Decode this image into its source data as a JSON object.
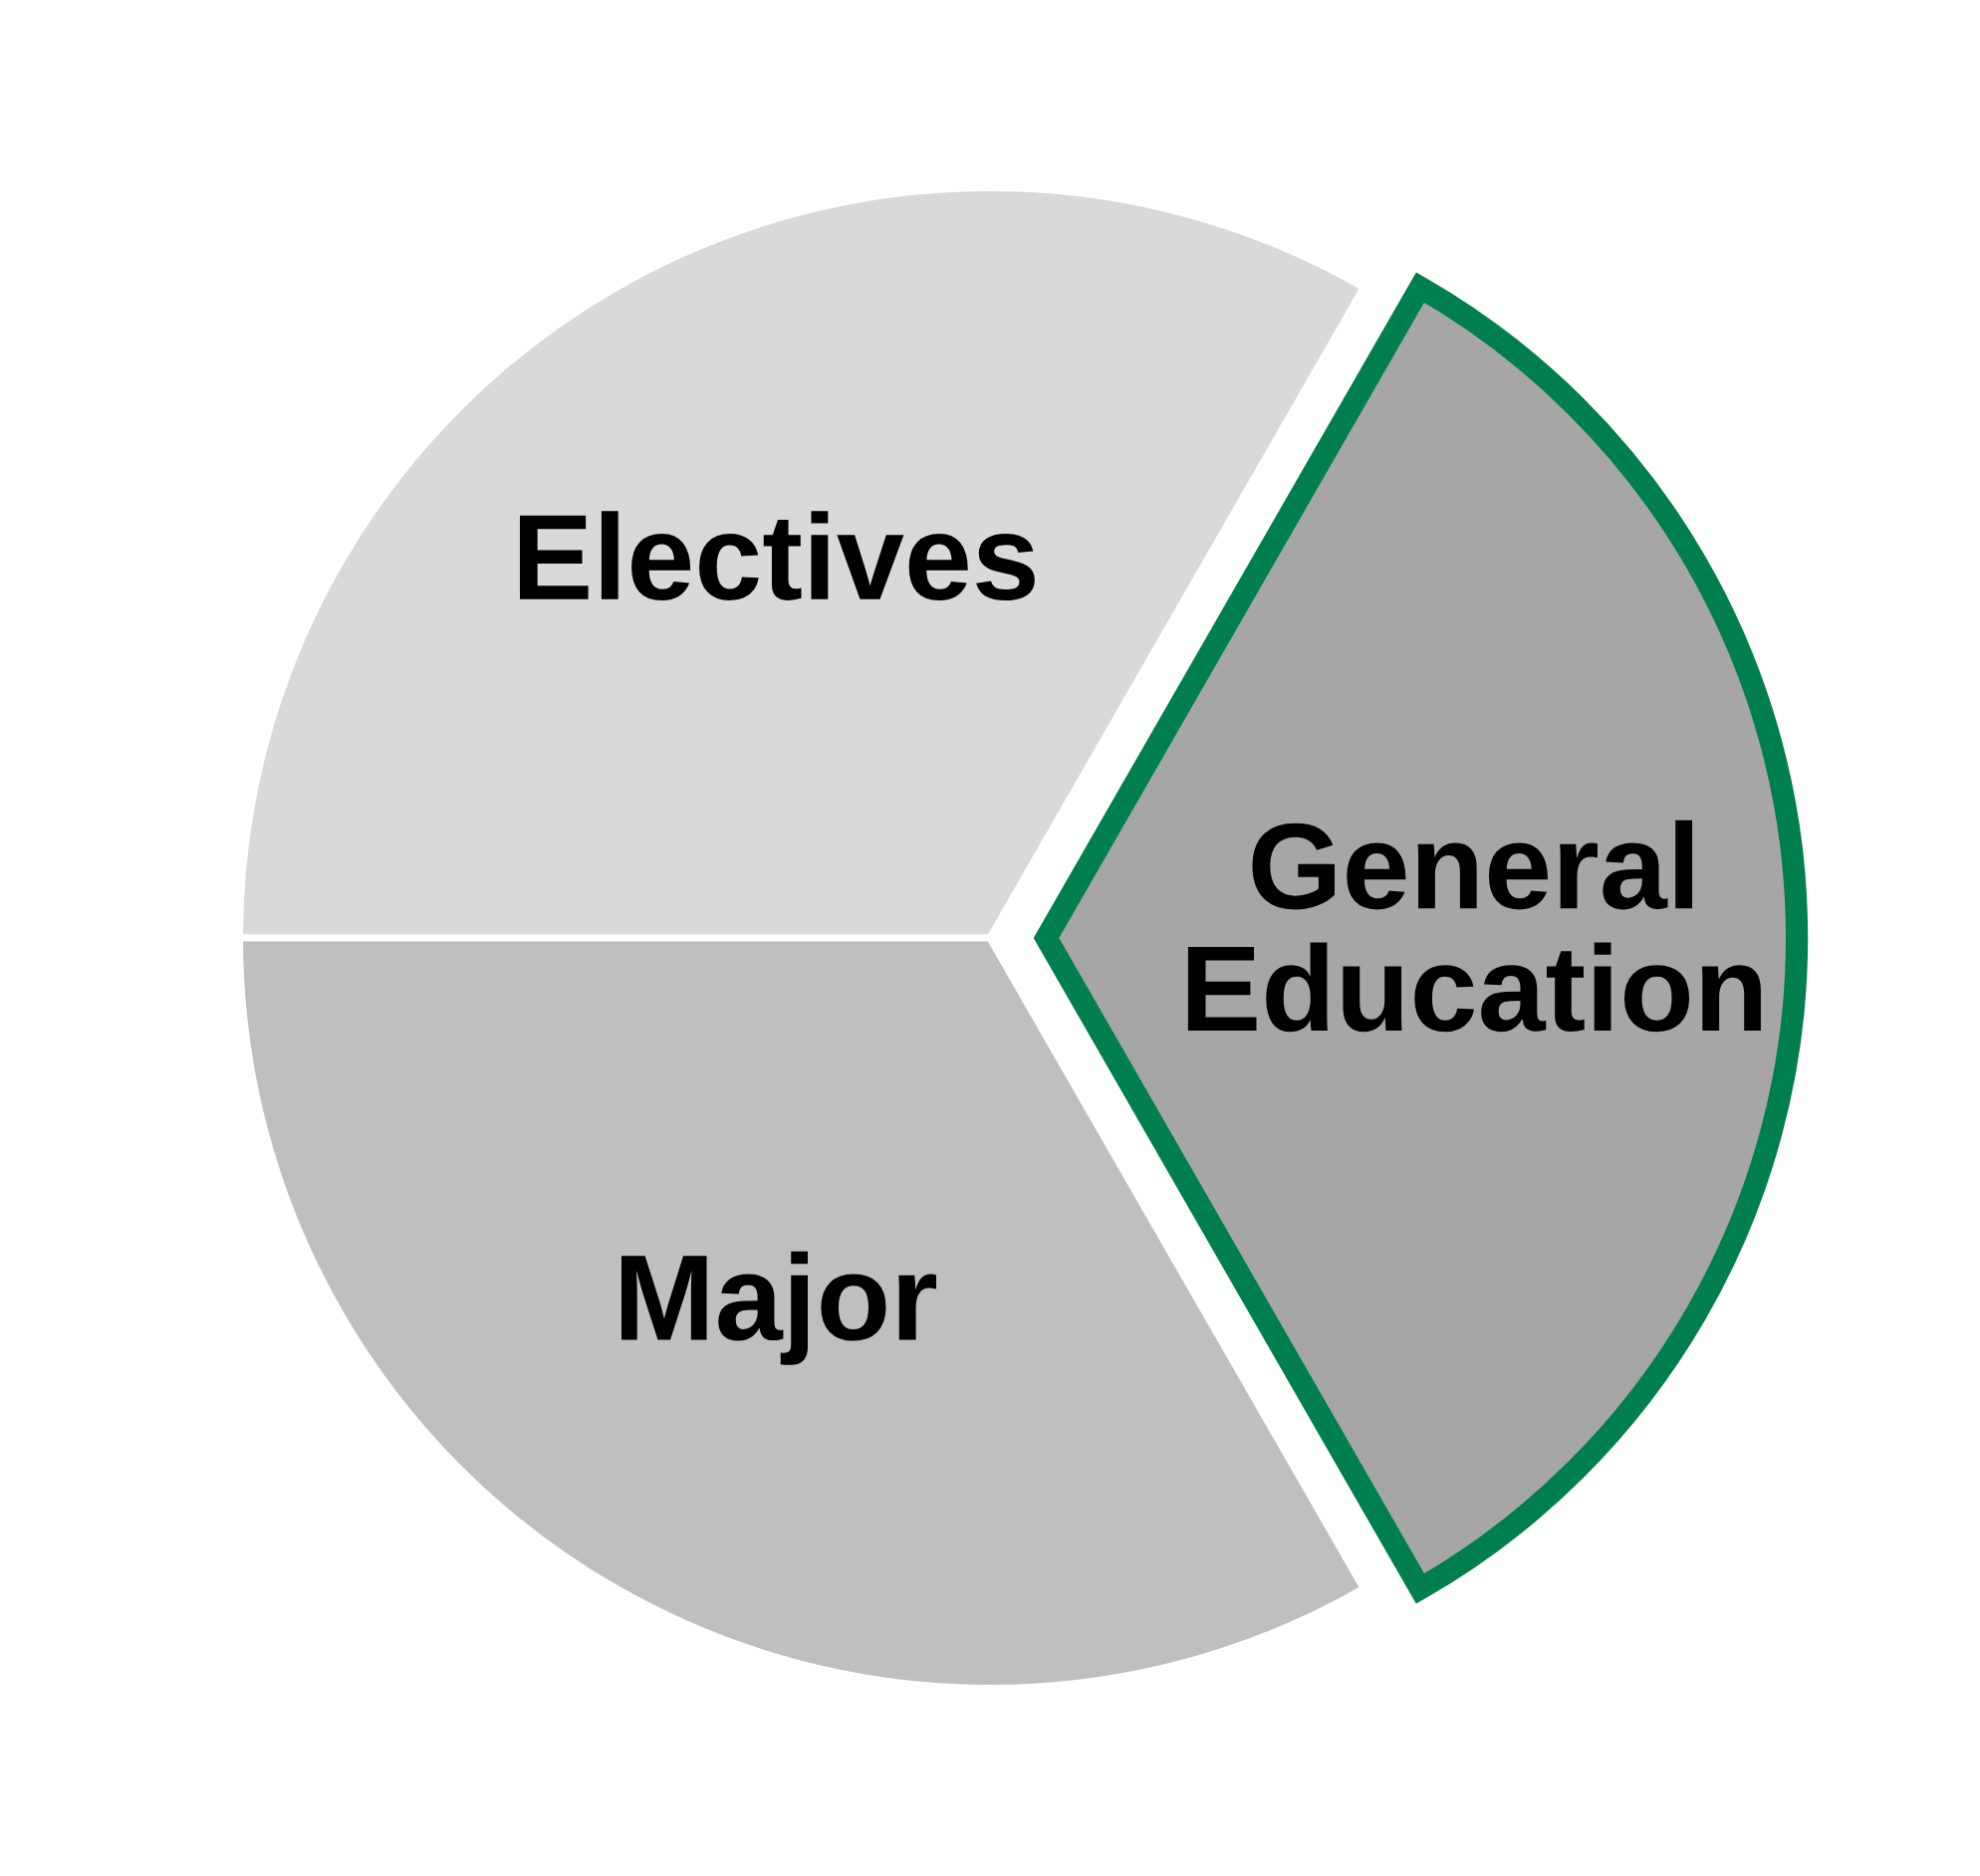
{
  "chart_data": {
    "type": "pie",
    "categories": [
      "Electives",
      "General Education",
      "Major"
    ],
    "values": [
      33.3,
      33.4,
      33.3
    ],
    "colors": [
      "#d9d9d9",
      "#a6a6a6",
      "#bfbfbf"
    ]
  }
}
